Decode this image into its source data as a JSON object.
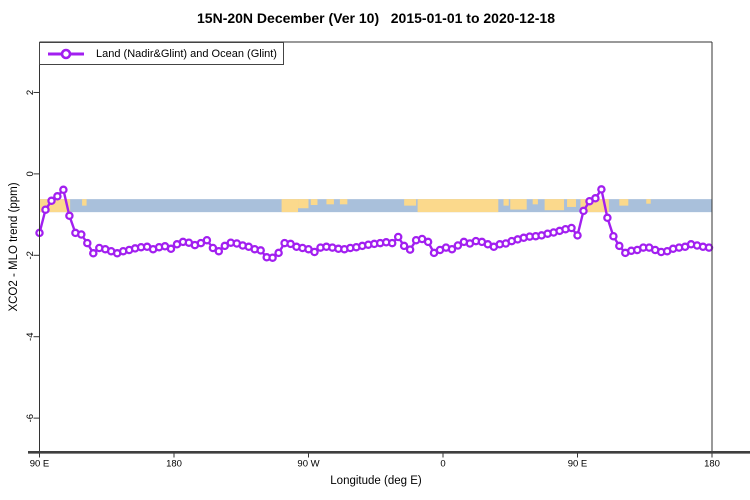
{
  "figure": {
    "title": "15N-20N December (Ver 10)   2015-01-01 to 2020-12-18",
    "xlabel": "Longitude (deg E)",
    "ylabel": "XCO2 - MLO trend (ppm)",
    "legend_label": "Land (Nadir&Glint) and Ocean (Glint)"
  },
  "colors": {
    "series": "#A21FF0",
    "marker_fill": "#ffffff",
    "ocean_band": "#A9C0DB",
    "land_band": "#FBD98C",
    "box": "#333333",
    "baseline": "#3F3F3F"
  },
  "chart_data": {
    "type": "line",
    "title": "15N-20N December (Ver 10)   2015-01-01 to 2020-12-18",
    "xlabel": "Longitude (deg E)",
    "ylabel": "XCO2 - MLO trend (ppm)",
    "grid": false,
    "xlim": [
      90,
      540
    ],
    "ylim": [
      -6.82,
      3.24
    ],
    "x_ticks": [
      {
        "value": 90,
        "label": "90 E"
      },
      {
        "value": 180,
        "label": "180"
      },
      {
        "value": 270,
        "label": "90 W"
      },
      {
        "value": 360,
        "label": "0"
      },
      {
        "value": 450,
        "label": "90 E"
      },
      {
        "value": 540,
        "label": "180"
      }
    ],
    "y_ticks": [
      {
        "value": 2,
        "label": "2"
      },
      {
        "value": 0,
        "label": "0"
      },
      {
        "value": -2,
        "label": "-2"
      },
      {
        "value": -4,
        "label": "-4"
      },
      {
        "value": -6,
        "label": "-6"
      }
    ],
    "legend": {
      "position": "top-left",
      "entries": [
        {
          "label": "Land (Nadir&Glint) and Ocean (Glint)",
          "color": "#A21FF0",
          "marker": "open-circle",
          "line": true
        }
      ]
    },
    "map_band": {
      "description": "land-ocean map strip for 15N-20N latitude belt",
      "y_top": -0.62,
      "y_bottom": -0.94,
      "ocean_color": "#A9C0DB",
      "land_color": "#FBD98C",
      "land_segments": [
        {
          "s": 90,
          "e": 110.5,
          "h": 1
        },
        {
          "s": 118.5,
          "e": 121.5,
          "h": 0.5
        },
        {
          "s": 252,
          "e": 263,
          "h": 1
        },
        {
          "s": 263,
          "e": 270,
          "h": 0.7
        },
        {
          "s": 271.5,
          "e": 276,
          "h": 0.45
        },
        {
          "s": 282,
          "e": 287,
          "h": 0.4
        },
        {
          "s": 291,
          "e": 296,
          "h": 0.4
        },
        {
          "s": 334,
          "e": 342,
          "h": 0.5
        },
        {
          "s": 343,
          "e": 397,
          "h": 1
        },
        {
          "s": 400.5,
          "e": 404,
          "h": 0.5
        },
        {
          "s": 405,
          "e": 416,
          "h": 0.8
        },
        {
          "s": 420,
          "e": 423.5,
          "h": 0.4
        },
        {
          "s": 428,
          "e": 441,
          "h": 0.85
        },
        {
          "s": 443,
          "e": 449,
          "h": 0.6
        },
        {
          "s": 452,
          "e": 471,
          "h": 1
        },
        {
          "s": 478,
          "e": 484,
          "h": 0.5
        },
        {
          "s": 496,
          "e": 499,
          "h": 0.35
        }
      ]
    },
    "series": [
      {
        "name": "Land (Nadir&Glint) and Ocean (Glint)",
        "color": "#A21FF0",
        "marker": "open-circle",
        "x": [
          90,
          94,
          98,
          102,
          106,
          110,
          114,
          118,
          122,
          126,
          130,
          134,
          138,
          142,
          146,
          150,
          154,
          158,
          162,
          166,
          170,
          174,
          178,
          182,
          186,
          190,
          194,
          198,
          202,
          206,
          210,
          214,
          218,
          222,
          226,
          230,
          234,
          238,
          242,
          246,
          250,
          254,
          258,
          262,
          266,
          270,
          274,
          278,
          282,
          286,
          290,
          294,
          298,
          302,
          306,
          310,
          314,
          318,
          322,
          326,
          330,
          334,
          338,
          342,
          346,
          350,
          354,
          358,
          362,
          366,
          370,
          374,
          378,
          382,
          386,
          390,
          394,
          398,
          402,
          406,
          410,
          414,
          418,
          422,
          426,
          430,
          434,
          438,
          442,
          446,
          450,
          454,
          458,
          462,
          466,
          470,
          474,
          478,
          482,
          486,
          490,
          494,
          498,
          502,
          506,
          510,
          514,
          518,
          522,
          526,
          530,
          534,
          538
        ],
        "y": [
          -1.45,
          -0.88,
          -0.66,
          -0.55,
          -0.39,
          -1.03,
          -1.45,
          -1.49,
          -1.7,
          -1.95,
          -1.82,
          -1.85,
          -1.9,
          -1.95,
          -1.9,
          -1.87,
          -1.83,
          -1.8,
          -1.79,
          -1.85,
          -1.8,
          -1.78,
          -1.84,
          -1.73,
          -1.67,
          -1.69,
          -1.75,
          -1.7,
          -1.63,
          -1.82,
          -1.9,
          -1.77,
          -1.69,
          -1.71,
          -1.76,
          -1.79,
          -1.85,
          -1.88,
          -2.05,
          -2.06,
          -1.94,
          -1.7,
          -1.72,
          -1.79,
          -1.82,
          -1.85,
          -1.92,
          -1.81,
          -1.79,
          -1.81,
          -1.84,
          -1.85,
          -1.82,
          -1.8,
          -1.77,
          -1.74,
          -1.72,
          -1.7,
          -1.68,
          -1.7,
          -1.55,
          -1.77,
          -1.86,
          -1.63,
          -1.6,
          -1.67,
          -1.94,
          -1.87,
          -1.81,
          -1.85,
          -1.76,
          -1.67,
          -1.71,
          -1.65,
          -1.67,
          -1.73,
          -1.79,
          -1.73,
          -1.71,
          -1.65,
          -1.61,
          -1.57,
          -1.54,
          -1.53,
          -1.51,
          -1.47,
          -1.44,
          -1.4,
          -1.36,
          -1.33,
          -1.51,
          -0.91,
          -0.67,
          -0.6,
          -0.38,
          -1.08,
          -1.53,
          -1.77,
          -1.94,
          -1.89,
          -1.87,
          -1.81,
          -1.81,
          -1.87,
          -1.92,
          -1.9,
          -1.84,
          -1.81,
          -1.79,
          -1.73,
          -1.76,
          -1.79,
          -1.81
        ]
      }
    ]
  }
}
